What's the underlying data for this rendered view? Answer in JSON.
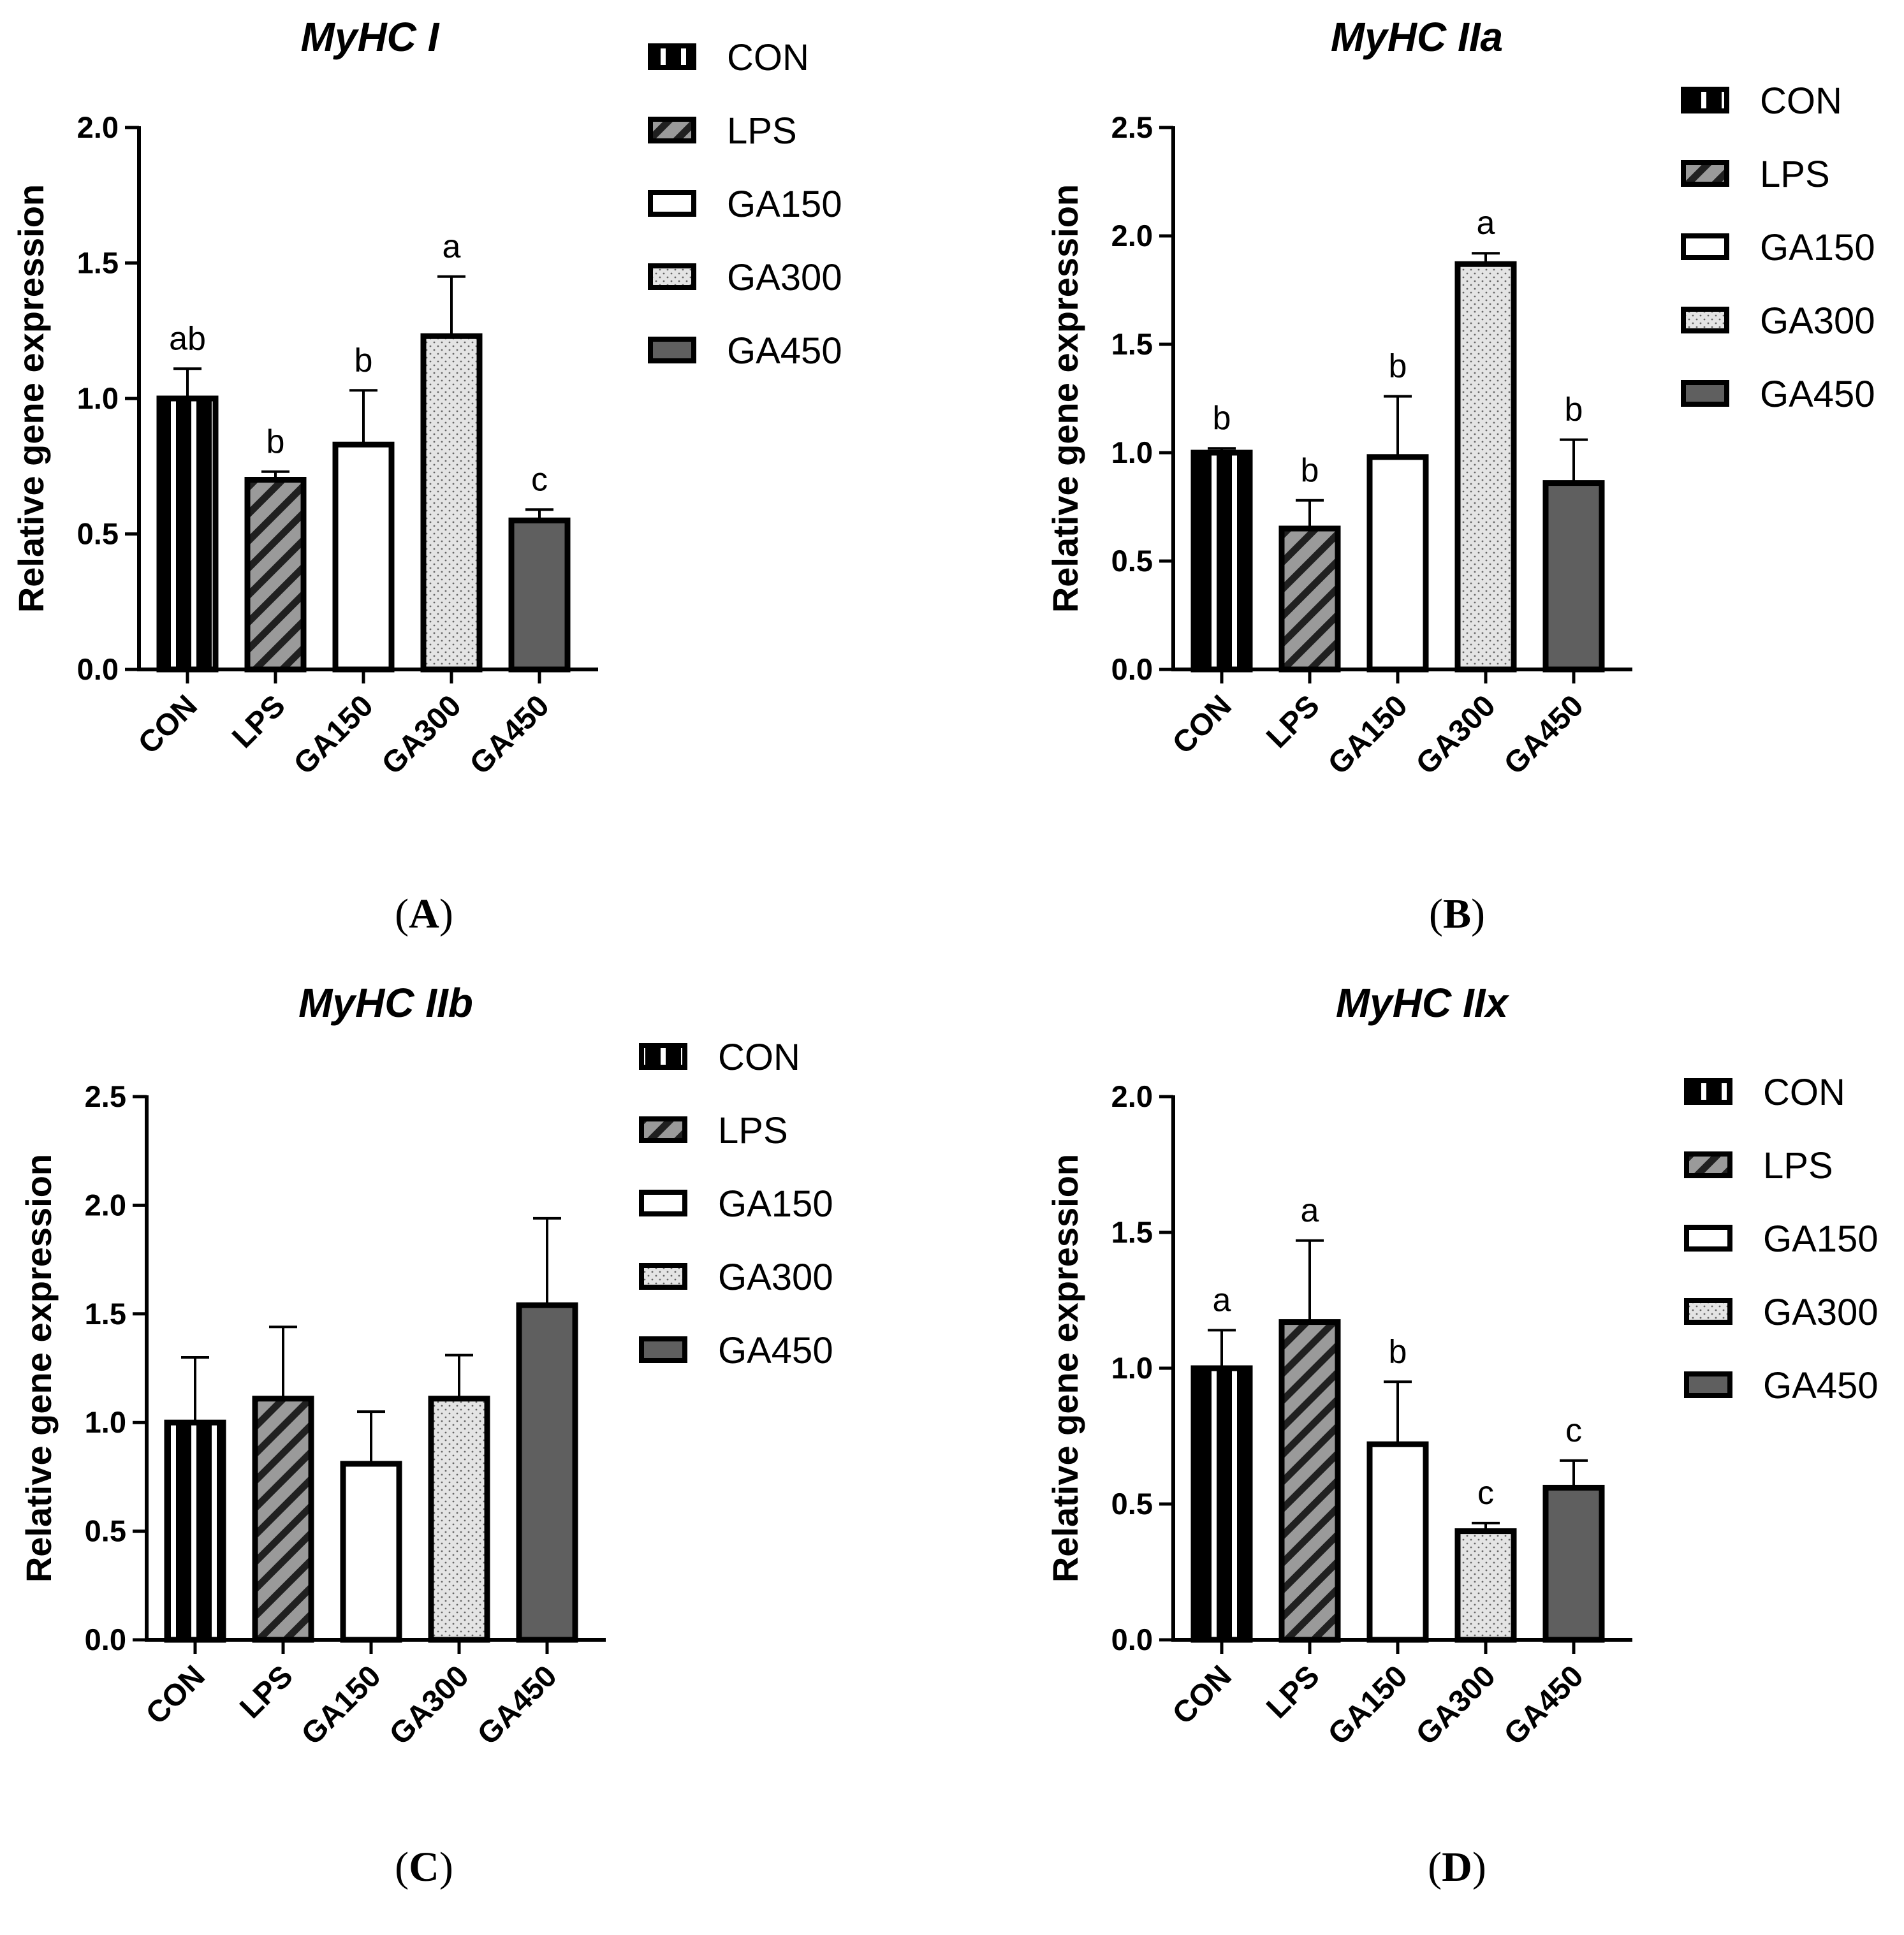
{
  "figure": {
    "series_names": [
      "CON",
      "LPS",
      "GA150",
      "GA300",
      "GA450"
    ],
    "fills": {
      "CON": "pat-con",
      "LPS": "pat-lps",
      "GA150": "#ffffff",
      "GA300": "pat-ga300",
      "GA450": "#5f5f5f"
    },
    "colors": {
      "stroke": "#000000",
      "lps_base": "#9a9a9a",
      "ga300_base": "#e4e4e4",
      "ga450": "#5f5f5f"
    }
  },
  "chart_data": [
    {
      "panel": "(A)",
      "type": "bar",
      "title": "MyHC I",
      "xlabel": "",
      "ylabel": "Relative  gene expression",
      "categories": [
        "CON",
        "LPS",
        "GA150",
        "GA300",
        "GA450"
      ],
      "values": [
        1.0,
        0.7,
        0.83,
        1.23,
        0.55
      ],
      "errors": [
        0.11,
        0.03,
        0.2,
        0.22,
        0.04
      ],
      "letters": [
        "ab",
        "b",
        "b",
        "a",
        "c"
      ],
      "ylim": [
        0,
        2.0
      ],
      "yticks": [
        "0.0",
        "0.5",
        "1.0",
        "1.5",
        "2.0"
      ],
      "legend": [
        "CON",
        "LPS",
        "GA150",
        "GA300",
        "GA450"
      ]
    },
    {
      "panel": "(B)",
      "type": "bar",
      "title": "MyHC IIa",
      "xlabel": "",
      "ylabel": "Relative  gene expression",
      "categories": [
        "CON",
        "LPS",
        "GA150",
        "GA300",
        "GA450"
      ],
      "values": [
        1.0,
        0.65,
        0.98,
        1.87,
        0.86
      ],
      "errors": [
        0.02,
        0.13,
        0.28,
        0.05,
        0.2
      ],
      "letters": [
        "b",
        "b",
        "b",
        "a",
        "b"
      ],
      "ylim": [
        0,
        2.5
      ],
      "yticks": [
        "0.0",
        "0.5",
        "1.0",
        "1.5",
        "2.0",
        "2.5"
      ],
      "legend": [
        "CON",
        "LPS",
        "GA150",
        "GA300",
        "GA450"
      ]
    },
    {
      "panel": "(C)",
      "type": "bar",
      "title": "MyHC IIb",
      "xlabel": "",
      "ylabel": "Relative  gene expression",
      "categories": [
        "CON",
        "LPS",
        "GA150",
        "GA300",
        "GA450"
      ],
      "values": [
        1.0,
        1.11,
        0.81,
        1.11,
        1.54
      ],
      "errors": [
        0.3,
        0.33,
        0.24,
        0.2,
        0.4
      ],
      "letters": [
        "",
        "",
        "",
        "",
        ""
      ],
      "ylim": [
        0,
        2.5
      ],
      "yticks": [
        "0.0",
        "0.5",
        "1.0",
        "1.5",
        "2.0",
        "2.5"
      ],
      "legend": [
        "CON",
        "LPS",
        "GA150",
        "GA300",
        "GA450"
      ]
    },
    {
      "panel": "(D)",
      "type": "bar",
      "title": "MyHC IIx",
      "xlabel": "",
      "ylabel": "Relative  gene expression",
      "categories": [
        "CON",
        "LPS",
        "GA150",
        "GA300",
        "GA450"
      ],
      "values": [
        1.0,
        1.17,
        0.72,
        0.4,
        0.56
      ],
      "errors": [
        0.14,
        0.3,
        0.23,
        0.03,
        0.1
      ],
      "letters": [
        "a",
        "a",
        "b",
        "c",
        "c"
      ],
      "ylim": [
        0,
        2.0
      ],
      "yticks": [
        "0.0",
        "0.5",
        "1.0",
        "1.5",
        "2.0"
      ],
      "legend": [
        "CON",
        "LPS",
        "GA150",
        "GA300",
        "GA450"
      ]
    }
  ]
}
